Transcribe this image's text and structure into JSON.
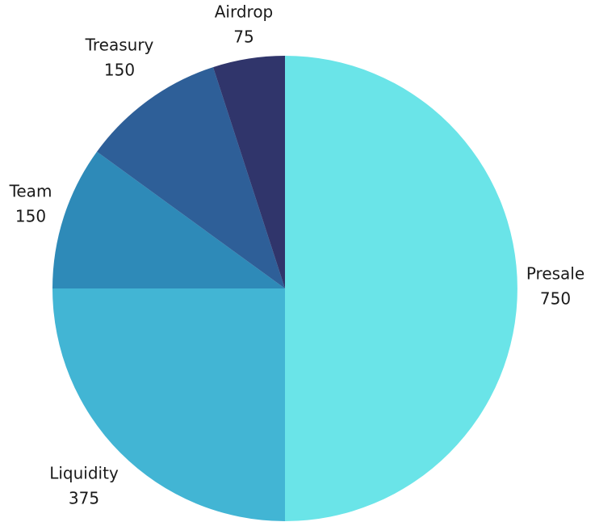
{
  "chart_data": {
    "type": "pie",
    "categories": [
      "Presale",
      "Liquidity",
      "Team",
      "Treasury",
      "Airdrop"
    ],
    "values": [
      750,
      375,
      150,
      150,
      75
    ],
    "colors": [
      "#6ae4e8",
      "#42b5d4",
      "#2e8ab8",
      "#2e5f98",
      "#30356b"
    ]
  }
}
